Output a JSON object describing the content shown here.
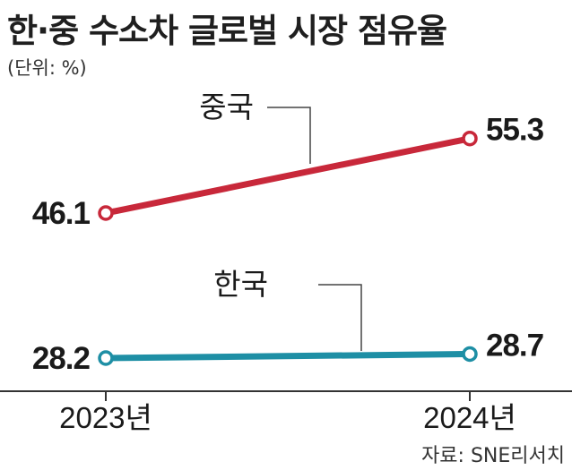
{
  "title": "한·중 수소차 글로벌 시장 점유율",
  "unit": "(단위: %)",
  "source": "자료: SNE리서치",
  "colors": {
    "china": "#c8283a",
    "korea": "#1e8fa5",
    "axis": "#333333",
    "leader": "#444444"
  },
  "chart_data": {
    "type": "line",
    "title": "한·중 수소차 글로벌 시장 점유율",
    "unit": "(단위: %)",
    "categories": [
      "2023년",
      "2024년"
    ],
    "series": [
      {
        "name": "중국",
        "values": [
          46.1,
          55.3
        ],
        "value_labels": [
          "46.1",
          "55.3"
        ]
      },
      {
        "name": "한국",
        "values": [
          28.2,
          28.7
        ],
        "value_labels": [
          "28.2",
          "28.7"
        ]
      }
    ],
    "grid": false,
    "legend": "inline labels"
  }
}
